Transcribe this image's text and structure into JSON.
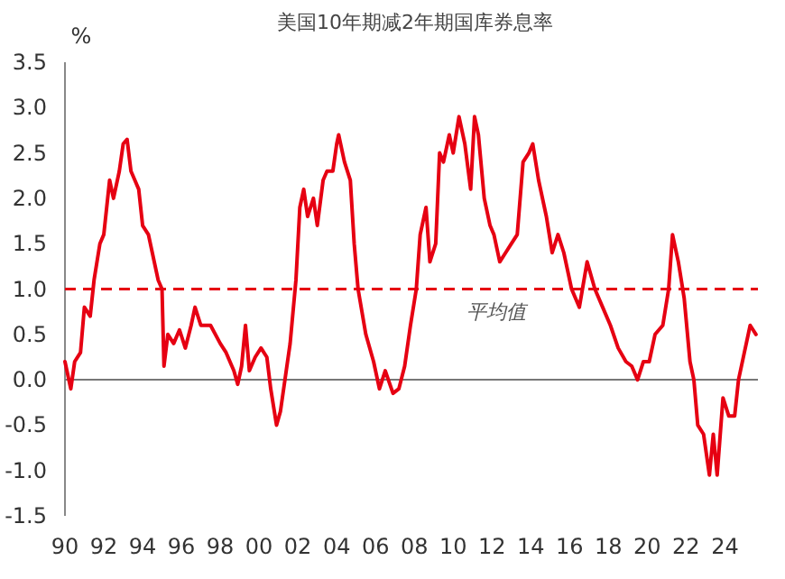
{
  "chart_data": {
    "type": "line",
    "title": "美国10年期减2年期国库券息率",
    "ylabel": "%",
    "xlim": [
      1990,
      2025.7
    ],
    "ylim": [
      -1.5,
      3.5
    ],
    "xticks": [
      {
        "value": 1990,
        "label": "90"
      },
      {
        "value": 1992,
        "label": "92"
      },
      {
        "value": 1994,
        "label": "94"
      },
      {
        "value": 1996,
        "label": "96"
      },
      {
        "value": 1998,
        "label": "98"
      },
      {
        "value": 2000,
        "label": "00"
      },
      {
        "value": 2002,
        "label": "02"
      },
      {
        "value": 2004,
        "label": "04"
      },
      {
        "value": 2006,
        "label": "06"
      },
      {
        "value": 2008,
        "label": "08"
      },
      {
        "value": 2010,
        "label": "10"
      },
      {
        "value": 2012,
        "label": "12"
      },
      {
        "value": 2014,
        "label": "14"
      },
      {
        "value": 2016,
        "label": "16"
      },
      {
        "value": 2018,
        "label": "18"
      },
      {
        "value": 2020,
        "label": "20"
      },
      {
        "value": 2022,
        "label": "22"
      },
      {
        "value": 2024,
        "label": "24"
      }
    ],
    "yticks": [
      3.5,
      {
        "value": 3,
        "label": "3.0"
      },
      2.5,
      {
        "value": 2,
        "label": "2.0"
      },
      1.5,
      {
        "value": 1,
        "label": "1.0"
      },
      0.5,
      {
        "value": 0,
        "label": "0.0"
      },
      {
        "value": -0.5,
        "label": "-0.5"
      },
      {
        "value": -1,
        "label": "-1.0"
      },
      {
        "value": -1.5,
        "label": "-1.5"
      }
    ],
    "grid": false,
    "x": [
      1990.0,
      1990.3,
      1990.5,
      1990.8,
      1991.0,
      1991.3,
      1991.5,
      1991.8,
      1992.0,
      1992.3,
      1992.5,
      1992.8,
      1993.0,
      1993.2,
      1993.4,
      1993.6,
      1993.8,
      1994.0,
      1994.3,
      1994.5,
      1994.8,
      1995.0,
      1995.1,
      1995.3,
      1995.6,
      1995.9,
      1996.2,
      1996.5,
      1996.7,
      1997.0,
      1997.5,
      1998.0,
      1998.3,
      1998.7,
      1998.9,
      1999.1,
      1999.3,
      1999.5,
      1999.8,
      2000.1,
      2000.4,
      2000.6,
      2000.9,
      2001.1,
      2001.4,
      2001.6,
      2001.9,
      2002.1,
      2002.3,
      2002.5,
      2002.8,
      2003.0,
      2003.3,
      2003.5,
      2003.8,
      2004.0,
      2004.1,
      2004.4,
      2004.7,
      2004.9,
      2005.1,
      2005.5,
      2005.9,
      2006.2,
      2006.5,
      2006.9,
      2007.2,
      2007.5,
      2007.8,
      2008.1,
      2008.3,
      2008.6,
      2008.8,
      2009.1,
      2009.3,
      2009.5,
      2009.8,
      2010.0,
      2010.3,
      2010.6,
      2010.9,
      2011.1,
      2011.3,
      2011.6,
      2011.9,
      2012.1,
      2012.4,
      2012.7,
      2013.0,
      2013.3,
      2013.6,
      2013.9,
      2014.1,
      2014.4,
      2014.8,
      2015.1,
      2015.4,
      2015.7,
      2016.1,
      2016.5,
      2016.9,
      2017.3,
      2017.7,
      2018.1,
      2018.5,
      2018.9,
      2019.2,
      2019.5,
      2019.8,
      2020.1,
      2020.4,
      2020.8,
      2021.1,
      2021.3,
      2021.6,
      2021.9,
      2022.2,
      2022.4,
      2022.6,
      2022.9,
      2023.2,
      2023.4,
      2023.6,
      2023.9,
      2024.2,
      2024.5,
      2024.7,
      2025.0,
      2025.3,
      2025.6
    ],
    "series": [
      {
        "color": "#e60012",
        "values": [
          0.2,
          -0.1,
          0.2,
          0.3,
          0.8,
          0.7,
          1.1,
          1.5,
          1.6,
          2.2,
          2.0,
          2.3,
          2.6,
          2.65,
          2.3,
          2.2,
          2.1,
          1.7,
          1.6,
          1.4,
          1.1,
          1.0,
          0.15,
          0.5,
          0.4,
          0.55,
          0.35,
          0.6,
          0.8,
          0.6,
          0.6,
          0.4,
          0.3,
          0.1,
          -0.05,
          0.15,
          0.6,
          0.1,
          0.25,
          0.35,
          0.25,
          -0.1,
          -0.5,
          -0.35,
          0.1,
          0.4,
          1.1,
          1.9,
          2.1,
          1.8,
          2.0,
          1.7,
          2.2,
          2.3,
          2.3,
          2.6,
          2.7,
          2.4,
          2.2,
          1.5,
          1.0,
          0.5,
          0.2,
          -0.1,
          0.1,
          -0.15,
          -0.1,
          0.15,
          0.6,
          1.0,
          1.6,
          1.9,
          1.3,
          1.5,
          2.5,
          2.4,
          2.7,
          2.5,
          2.9,
          2.6,
          2.1,
          2.9,
          2.7,
          2.0,
          1.7,
          1.6,
          1.3,
          1.4,
          1.5,
          1.6,
          2.4,
          2.5,
          2.6,
          2.2,
          1.8,
          1.4,
          1.6,
          1.4,
          1.0,
          0.8,
          1.3,
          1.0,
          0.8,
          0.6,
          0.35,
          0.2,
          0.15,
          0.0,
          0.2,
          0.2,
          0.5,
          0.6,
          1.0,
          1.6,
          1.3,
          0.9,
          0.2,
          0.0,
          -0.5,
          -0.6,
          -1.05,
          -0.6,
          -1.05,
          -0.2,
          -0.4,
          -0.4,
          0.0,
          0.3,
          0.6,
          0.5
        ]
      }
    ],
    "ref_lines": [
      {
        "axis": "y",
        "value": 1.0,
        "label": "平均值",
        "color": "#e60012",
        "line_style": "dashed"
      }
    ]
  }
}
